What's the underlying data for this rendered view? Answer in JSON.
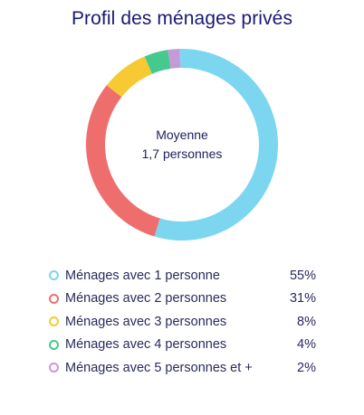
{
  "chart_data": {
    "type": "pie",
    "title": "Profil des ménages privés",
    "center_text": [
      "Moyenne",
      "1,7 personnes"
    ],
    "categories": [
      "Ménages avec 1 personne",
      "Ménages avec 2 personnes",
      "Ménages avec 3 personnes",
      "Ménages avec 4 personnes",
      "Ménages avec 5 personnes et +"
    ],
    "values": [
      55,
      31,
      8,
      4,
      2
    ],
    "value_labels": [
      "55%",
      "31%",
      "8%",
      "4%",
      "2%"
    ],
    "colors": [
      "#7dd6f0",
      "#ee6e6e",
      "#f7c933",
      "#44c98f",
      "#c59ad6"
    ],
    "legend_position": "bottom"
  }
}
